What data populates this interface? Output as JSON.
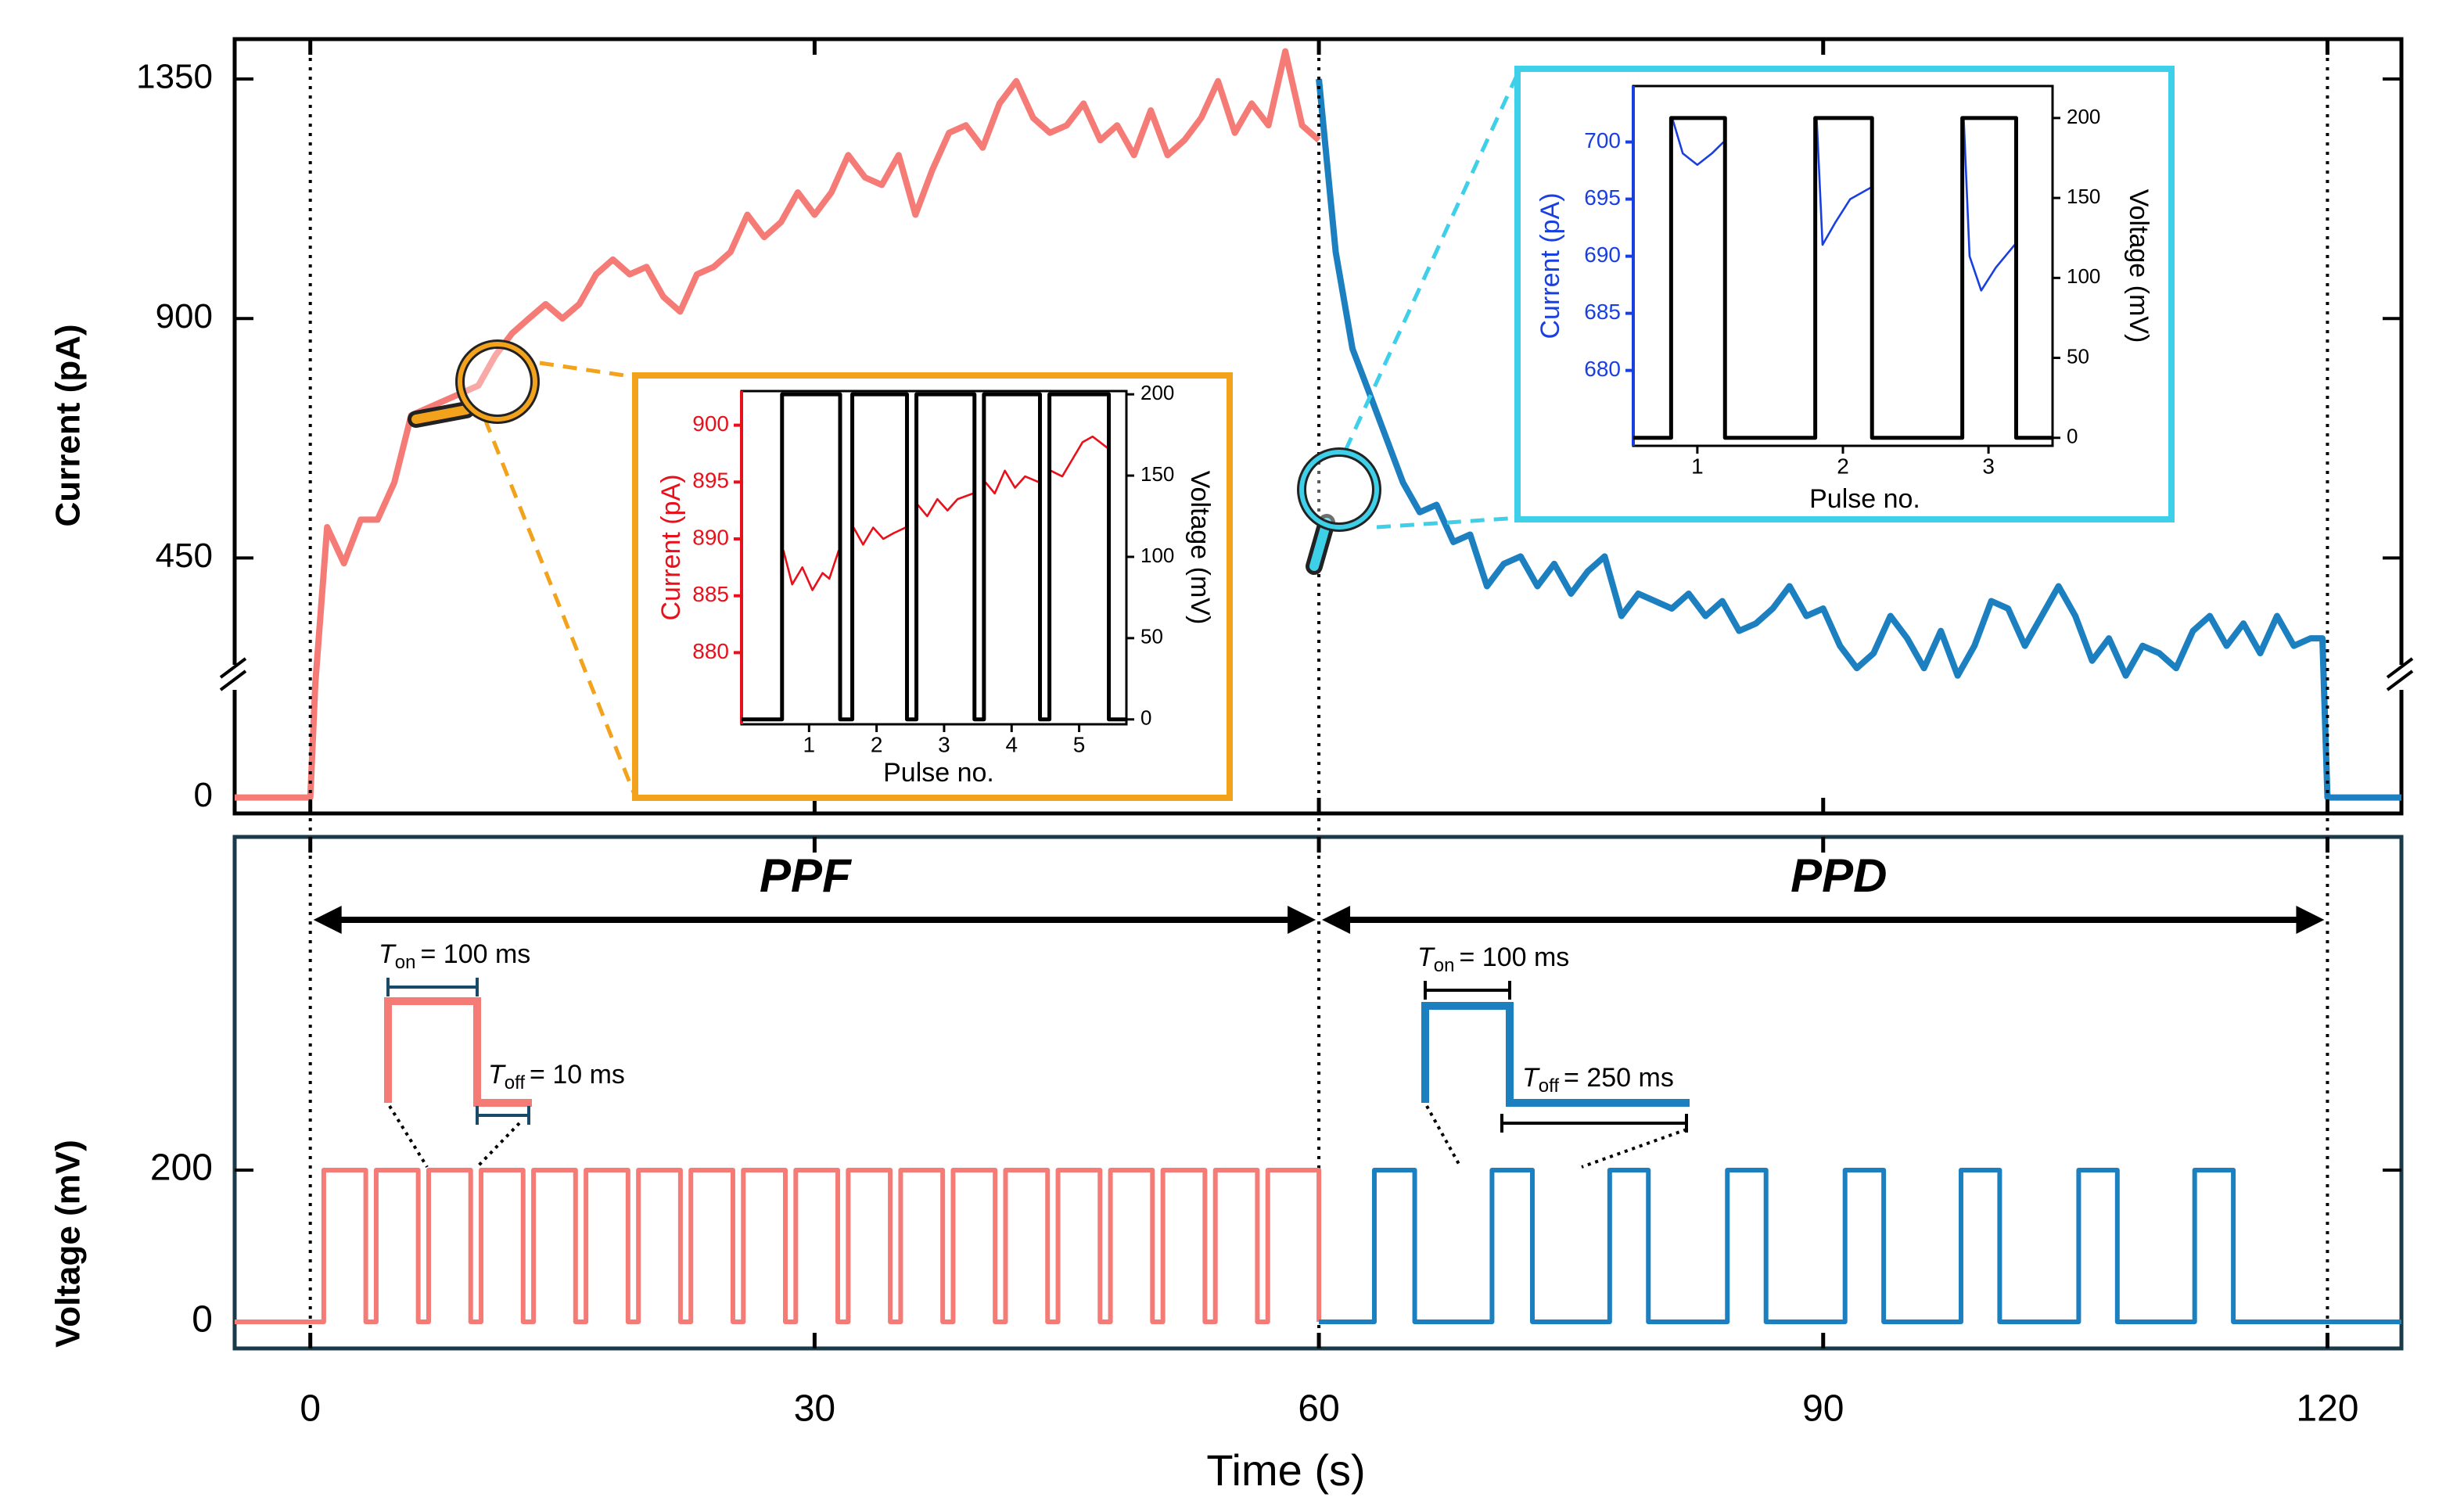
{
  "chart_data": [
    {
      "type": "line",
      "ylabel": "Current (pA)",
      "xlim": [
        -4.5,
        124.4
      ],
      "xticks": [
        0,
        30,
        60,
        90,
        120
      ],
      "ylim": [
        -30,
        1425
      ],
      "yticks": [
        0,
        450,
        900,
        1350
      ],
      "vlines": [
        0,
        60,
        120
      ],
      "series": [
        {
          "color": "#f57b77",
          "x": [
            -4.5,
            0,
            0.3,
            1,
            2,
            3,
            4,
            5,
            6,
            7,
            8,
            9,
            10,
            11,
            12,
            13,
            14,
            15,
            16,
            17,
            18,
            19,
            20,
            21,
            22,
            23,
            24,
            25,
            26,
            27,
            28,
            29,
            30,
            31,
            32,
            33,
            34,
            35,
            36,
            37,
            38,
            39,
            40,
            41,
            42,
            43,
            44,
            45,
            46,
            47,
            48,
            49,
            50,
            51,
            52,
            53,
            54,
            55,
            56,
            57,
            58,
            59,
            60
          ],
          "values": [
            0,
            0,
            215,
            508,
            440,
            522,
            522,
            592,
            718,
            732,
            746,
            760,
            774,
            830,
            872,
            900,
            927,
            900,
            927,
            983,
            1011,
            983,
            997,
            941,
            913,
            983,
            997,
            1025,
            1095,
            1053,
            1081,
            1137,
            1095,
            1137,
            1207,
            1165,
            1151,
            1207,
            1095,
            1179,
            1249,
            1263,
            1221,
            1304,
            1346,
            1277,
            1249,
            1263,
            1304,
            1235,
            1263,
            1207,
            1291,
            1207,
            1235,
            1277,
            1346,
            1249,
            1304,
            1263,
            1402,
            1263,
            1235
          ]
        },
        {
          "color": "#1b7fc0",
          "x": [
            60,
            61,
            62,
            63,
            64,
            65,
            66,
            67,
            68,
            69,
            70,
            71,
            72,
            73,
            74,
            75,
            76,
            77,
            78,
            79,
            80,
            81,
            82,
            83,
            84,
            85,
            86,
            87,
            88,
            89,
            90,
            91,
            92,
            93,
            94,
            95,
            96,
            97,
            98,
            99,
            100,
            101,
            102,
            103,
            104,
            105,
            106,
            107,
            108,
            109,
            110,
            111,
            112,
            113,
            114,
            115,
            116,
            117,
            118,
            119,
            119.7,
            120,
            124.4
          ],
          "values": [
            1350,
            1025,
            843,
            760,
            676,
            592,
            536,
            550,
            480,
            494,
            397,
            439,
            453,
            397,
            439,
            383,
            425,
            453,
            341,
            383,
            369,
            355,
            383,
            341,
            369,
            313,
            327,
            355,
            397,
            341,
            355,
            285,
            243,
            271,
            341,
            299,
            243,
            313,
            229,
            285,
            369,
            355,
            285,
            341,
            397,
            341,
            257,
            299,
            229,
            285,
            271,
            243,
            313,
            341,
            285,
            327,
            271,
            341,
            285,
            299,
            299,
            0,
            0
          ]
        }
      ]
    },
    {
      "type": "line",
      "ylabel": "Current (pA)",
      "y2label": "Voltage (mV)",
      "xlabel": "Pulse no.",
      "frame_color": "#f2a31b",
      "xlim": [
        0,
        5.7
      ],
      "xticks": [
        1,
        2,
        3,
        4,
        5
      ],
      "ylim": [
        873.7,
        903
      ],
      "yticks": [
        880,
        885,
        890,
        895,
        900
      ],
      "y2lim": [
        -3,
        202
      ],
      "y2ticks": [
        0,
        50,
        100,
        150,
        200
      ],
      "series": [
        {
          "color": "#e8101a",
          "x": [
            0.62,
            0.75,
            0.9,
            1.05,
            1.2,
            1.3,
            1.44,
            1.55,
            1.66,
            1.8,
            1.95,
            2.1,
            2.25,
            2.43,
            2.52,
            2.61,
            2.75,
            2.9,
            3.05,
            3.2,
            3.43,
            3.52,
            3.61,
            3.75,
            3.9,
            4.05,
            4.2,
            4.4,
            4.49,
            4.58,
            4.75,
            4.9,
            5.05,
            5.2,
            5.42
          ],
          "values": [
            889,
            886,
            887.5,
            885.5,
            887,
            886.5,
            889,
            null,
            891,
            889.5,
            891,
            890,
            890.5,
            891,
            null,
            893,
            892,
            893.5,
            892.5,
            893.5,
            894,
            null,
            895,
            894,
            896,
            894.5,
            895.5,
            895,
            null,
            896,
            895.5,
            897,
            898.5,
            899,
            898
          ]
        },
        {
          "color": "#000000",
          "axis": "y2",
          "x": [
            0,
            0.6,
            0.6,
            1.46,
            1.46,
            1.64,
            1.64,
            2.45,
            2.45,
            2.59,
            2.59,
            3.45,
            3.45,
            3.59,
            3.59,
            4.42,
            4.42,
            4.56,
            4.56,
            5.44,
            5.44,
            5.7
          ],
          "values": [
            0,
            0,
            200,
            200,
            0,
            0,
            200,
            200,
            0,
            0,
            200,
            200,
            0,
            0,
            200,
            200,
            0,
            0,
            200,
            200,
            0,
            0
          ]
        }
      ]
    },
    {
      "type": "line",
      "ylabel": "Current (pA)",
      "y2label": "Voltage (mV)",
      "xlabel": "Pulse no.",
      "frame_color": "#3dd0e8",
      "xlim": [
        0.56,
        3.44
      ],
      "xticks": [
        1,
        2,
        3
      ],
      "ylim": [
        673.4,
        704.9
      ],
      "yticks": [
        680,
        685,
        690,
        695,
        700
      ],
      "y2lim": [
        -5,
        220
      ],
      "y2ticks": [
        0,
        50,
        100,
        150,
        200
      ],
      "series": [
        {
          "color": "#1a3fe0",
          "x": [
            0.83,
            0.9,
            1.0,
            1.1,
            1.18,
            1.5,
            1.82,
            1.86,
            1.95,
            2.05,
            2.19,
            2.5,
            2.83,
            2.87,
            2.95,
            3.05,
            3.18
          ],
          "values": [
            702,
            699,
            698,
            699,
            700,
            null,
            702,
            691,
            693,
            695,
            696,
            null,
            702,
            690,
            687,
            689,
            691
          ]
        },
        {
          "color": "#000000",
          "axis": "y2",
          "x": [
            0.56,
            0.82,
            0.82,
            1.19,
            1.19,
            1.81,
            1.81,
            2.2,
            2.2,
            2.82,
            2.82,
            3.19,
            3.19,
            3.44
          ],
          "values": [
            0,
            0,
            200,
            200,
            0,
            0,
            200,
            200,
            0,
            0,
            200,
            200,
            0,
            0
          ]
        }
      ]
    },
    {
      "type": "line",
      "ylabel": "Voltage (mV)",
      "xlabel": "Time (s)",
      "xlim": [
        -4.5,
        124.4
      ],
      "xticks": [
        0,
        30,
        60,
        90,
        120
      ],
      "ylim": [
        -35,
        639
      ],
      "yticks": [
        0,
        200
      ],
      "series": [
        {
          "color": "#f57b77",
          "x": [
            -4.5,
            0.8,
            0.8,
            3.3,
            3.3,
            3.92,
            3.92,
            6.42,
            6.42,
            7.04,
            7.04,
            9.54,
            9.54,
            10.16,
            10.16,
            12.66,
            12.66,
            13.28,
            13.28,
            15.78,
            15.78,
            16.4,
            16.4,
            18.9,
            18.9,
            19.52,
            19.52,
            22.02,
            22.02,
            22.64,
            22.64,
            25.14,
            25.14,
            25.76,
            25.76,
            28.26,
            28.26,
            28.88,
            28.88,
            31.38,
            31.38,
            32,
            32,
            34.5,
            34.5,
            35.12,
            35.12,
            37.62,
            37.62,
            38.24,
            38.24,
            40.74,
            40.74,
            41.36,
            41.36,
            43.86,
            43.86,
            44.48,
            44.48,
            46.98,
            46.98,
            47.6,
            47.6,
            50.1,
            50.1,
            50.72,
            50.72,
            53.22,
            53.22,
            53.84,
            53.84,
            56.34,
            56.34,
            56.96,
            56.96,
            60,
            60
          ],
          "values": [
            0,
            0,
            200,
            200,
            0,
            0,
            200,
            200,
            0,
            0,
            200,
            200,
            0,
            0,
            200,
            200,
            0,
            0,
            200,
            200,
            0,
            0,
            200,
            200,
            0,
            0,
            200,
            200,
            0,
            0,
            200,
            200,
            0,
            0,
            200,
            200,
            0,
            0,
            200,
            200,
            0,
            0,
            200,
            200,
            0,
            0,
            200,
            200,
            0,
            0,
            200,
            200,
            0,
            0,
            200,
            200,
            0,
            0,
            200,
            200,
            0,
            0,
            200,
            200,
            0,
            0,
            200,
            200,
            0,
            0,
            200,
            200,
            0,
            0,
            200,
            200,
            0
          ]
        },
        {
          "color": "#1b7fc0",
          "x": [
            60,
            63.3,
            63.3,
            65.7,
            65.7,
            70.3,
            70.3,
            72.7,
            72.7,
            77.3,
            77.3,
            79.6,
            79.6,
            84.3,
            84.3,
            86.6,
            86.6,
            91.3,
            91.3,
            93.6,
            93.6,
            98.2,
            98.2,
            100.5,
            100.5,
            105.2,
            105.2,
            107.5,
            107.5,
            112.1,
            112.1,
            114.4,
            114.4,
            124.4
          ],
          "values": [
            0,
            0,
            200,
            200,
            0,
            0,
            200,
            200,
            0,
            0,
            200,
            200,
            0,
            0,
            200,
            200,
            0,
            0,
            200,
            200,
            0,
            0,
            200,
            200,
            0,
            0,
            200,
            200,
            0,
            0,
            200,
            200,
            0,
            0
          ]
        }
      ],
      "annotations": [
        {
          "text": "PPF"
        },
        {
          "text": "PPD"
        },
        {
          "symbol": "T",
          "subscript": "on",
          "text": "= 100 ms"
        },
        {
          "symbol": "T",
          "subscript": "off",
          "text": "= 10 ms"
        },
        {
          "symbol": "T",
          "subscript": "on",
          "text": "= 100 ms"
        },
        {
          "symbol": "T",
          "subscript": "off",
          "text": "= 250 ms"
        }
      ]
    }
  ]
}
